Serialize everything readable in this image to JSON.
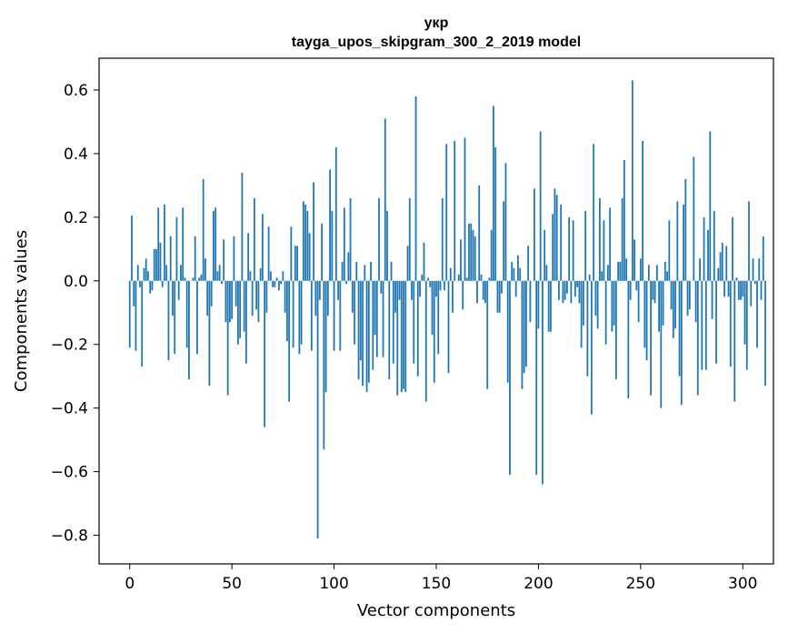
{
  "chart_data": {
    "type": "bar",
    "title": "укр",
    "subtitle": "tayga_upos_skipgram_300_2_2019 model",
    "xlabel": "Vector components",
    "ylabel": "Components values",
    "xlim": [
      -15,
      315
    ],
    "ylim": [
      -0.89,
      0.7
    ],
    "xticks": [
      0,
      50,
      100,
      150,
      200,
      250,
      300
    ],
    "yticks": [
      -0.8,
      -0.6,
      -0.4,
      -0.2,
      0.0,
      0.2,
      0.4,
      0.6
    ],
    "ytick_labels": [
      "−0.8",
      "−0.6",
      "−0.4",
      "−0.2",
      "0.0",
      "0.2",
      "0.4",
      "0.6"
    ],
    "grid": false,
    "color": "#1f77b4",
    "values": [
      -0.21,
      0.205,
      -0.08,
      -0.22,
      0.05,
      -0.02,
      -0.27,
      0.04,
      0.07,
      0.03,
      -0.04,
      -0.03,
      0.1,
      0.1,
      0.23,
      0.12,
      -0.02,
      0.24,
      0.05,
      -0.25,
      0.14,
      -0.11,
      -0.23,
      0.2,
      -0.06,
      0.05,
      0.23,
      0.01,
      -0.21,
      -0.31,
      0.0,
      0.01,
      0.14,
      -0.23,
      0.01,
      0.02,
      0.32,
      0.07,
      -0.11,
      -0.33,
      -0.08,
      0.22,
      0.23,
      0.03,
      0.05,
      -0.01,
      0.13,
      -0.13,
      -0.36,
      -0.13,
      -0.12,
      0.14,
      -0.08,
      -0.2,
      -0.18,
      0.34,
      -0.16,
      -0.26,
      0.15,
      0.03,
      -0.11,
      0.26,
      -0.09,
      -0.13,
      0.04,
      0.21,
      -0.46,
      -0.1,
      0.17,
      0.03,
      -0.02,
      -0.02,
      0.01,
      -0.03,
      -0.01,
      0.03,
      -0.1,
      -0.19,
      -0.38,
      0.17,
      -0.21,
      0.11,
      0.11,
      -0.23,
      -0.2,
      0.25,
      0.24,
      0.22,
      0.15,
      -0.22,
      0.31,
      -0.11,
      -0.81,
      -0.06,
      0.18,
      -0.53,
      -0.35,
      -0.11,
      0.35,
      0.22,
      -0.22,
      0.42,
      -0.06,
      -0.22,
      0.06,
      0.23,
      -0.01,
      0.09,
      0.26,
      -0.1,
      -0.2,
      0.06,
      -0.31,
      -0.25,
      -0.33,
      0.05,
      -0.35,
      -0.32,
      0.06,
      -0.28,
      -0.17,
      -0.24,
      0.26,
      -0.04,
      -0.24,
      0.51,
      0.22,
      -0.31,
      0.06,
      -0.26,
      -0.1,
      -0.36,
      -0.06,
      -0.35,
      -0.34,
      -0.35,
      0.11,
      0.26,
      -0.06,
      -0.26,
      0.58,
      -0.3,
      -0.05,
      0.02,
      0.12,
      -0.38,
      0.01,
      -0.02,
      -0.17,
      -0.32,
      -0.05,
      -0.23,
      -0.03,
      0.26,
      -0.03,
      0.43,
      -0.29,
      0.04,
      -0.1,
      0.44,
      0.0,
      0.02,
      0.13,
      -0.09,
      0.45,
      0.01,
      0.18,
      0.18,
      0.16,
      0.14,
      -0.07,
      0.3,
      0.02,
      -0.06,
      -0.07,
      -0.34,
      0.01,
      0.16,
      0.55,
      0.42,
      -0.1,
      -0.1,
      -0.04,
      0.25,
      0.37,
      -0.32,
      -0.61,
      0.06,
      0.04,
      -0.05,
      0.08,
      0.04,
      -0.34,
      -0.29,
      -0.27,
      0.11,
      -0.13,
      0.0,
      0.29,
      -0.61,
      -0.15,
      0.47,
      -0.64,
      0.16,
      0.05,
      -0.16,
      -0.16,
      0.21,
      0.29,
      0.27,
      -0.06,
      0.24,
      -0.07,
      -0.06,
      -0.04,
      0.2,
      -0.07,
      0.19,
      -0.05,
      -0.02,
      -0.07,
      -0.21,
      -0.14,
      0.22,
      -0.3,
      0.02,
      -0.42,
      0.43,
      -0.11,
      -0.15,
      0.26,
      0.03,
      0.19,
      -0.2,
      0.05,
      0.23,
      -0.16,
      -0.14,
      -0.31,
      0.06,
      0.06,
      0.26,
      0.38,
      0.07,
      -0.37,
      -0.06,
      0.63,
      0.13,
      -0.03,
      -0.13,
      0.07,
      0.44,
      -0.21,
      -0.25,
      0.05,
      -0.36,
      -0.06,
      -0.07,
      0.05,
      -0.16,
      -0.4,
      -0.14,
      0.06,
      0.03,
      0.19,
      -0.09,
      -0.18,
      -0.15,
      0.25,
      -0.3,
      -0.39,
      0.24,
      0.32,
      -0.11,
      -0.09,
      0.0,
      0.39,
      -0.13,
      -0.36,
      0.07,
      -0.28,
      0.2,
      -0.28,
      0.16,
      0.47,
      -0.12,
      0.22,
      -0.26,
      0.04,
      0.09,
      0.12,
      -0.05,
      0.11,
      -0.05,
      -0.27,
      0.2,
      -0.38,
      0.01,
      -0.06,
      -0.06,
      -0.05,
      -0.2,
      -0.28,
      0.25,
      -0.08,
      0.07,
      -0.01,
      -0.21,
      0.07,
      -0.06,
      0.14,
      -0.33
    ]
  }
}
